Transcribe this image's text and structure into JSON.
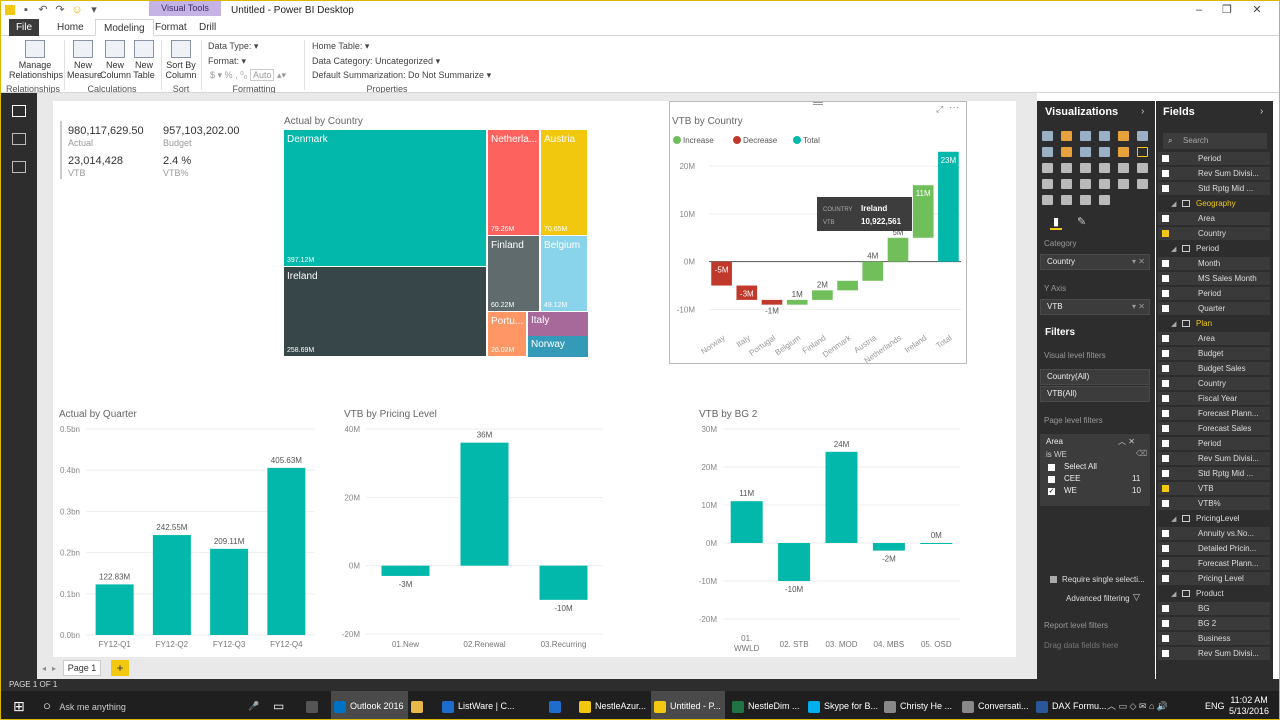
{
  "window": {
    "title": "Untitled - Power BI Desktop",
    "visual_tools": "Visual Tools"
  },
  "ribbon": {
    "tabs": [
      "File",
      "Home",
      "Modeling",
      "Format",
      "Drill"
    ],
    "active_tab": "Modeling",
    "buttons": {
      "manage_relationships": "Manage Relationships",
      "new_measure": "New Measure",
      "new_column": "New Column",
      "new_table": "New Table",
      "sort_by_column": "Sort By Column"
    },
    "groups": {
      "relationships": "Relationships",
      "calculations": "Calculations",
      "sort": "Sort",
      "formatting": "Formatting",
      "properties": "Properties"
    },
    "formatting": {
      "data_type": "Data Type:",
      "format": "Format:",
      "currency": "$",
      "percent": "%",
      "comma": ",",
      "auto": "Auto"
    },
    "properties": {
      "home_table": "Home Table:",
      "data_category": "Data Category: Uncategorized",
      "default_summarization": "Default Summarization: Do Not Summarize"
    }
  },
  "cards": {
    "actual_value": "980,117,629.50",
    "actual_label": "Actual",
    "budget_value": "957,103,202.00",
    "budget_label": "Budget",
    "vtb_value": "23,014,428",
    "vtb_label": "VTB",
    "vtbpct_value": "2.4 %",
    "vtbpct_label": "VTB%"
  },
  "treemap": {
    "title": "Actual by Country",
    "items": [
      {
        "name": "Denmark",
        "value": "397.12M",
        "color": "#01b8aa"
      },
      {
        "name": "Ireland",
        "value": "258.69M",
        "color": "#374649"
      },
      {
        "name": "Netherla...",
        "value": "79.26M",
        "color": "#fd625e"
      },
      {
        "name": "Austria",
        "value": "70.65M",
        "color": "#f2c80f"
      },
      {
        "name": "Finland",
        "value": "60.22M",
        "color": "#5f6b6d"
      },
      {
        "name": "Belgium",
        "value": "49.12M",
        "color": "#8ad4eb"
      },
      {
        "name": "Portu...",
        "value": "26.02M",
        "color": "#fe9666"
      },
      {
        "name": "Italy",
        "value": "",
        "color": "#a66999"
      },
      {
        "name": "Norway",
        "value": "",
        "color": "#3599b8"
      }
    ]
  },
  "chart_data": [
    {
      "type": "bar",
      "subtype": "waterfall",
      "title": "VTB by Country",
      "legend": [
        "Increase",
        "Decrease",
        "Total"
      ],
      "legend_colors": {
        "Increase": "#70bf5a",
        "Decrease": "#c0392b",
        "Total": "#01b8aa"
      },
      "categories": [
        "Norway",
        "Italy",
        "Portugal",
        "Belgium",
        "Finland",
        "Denmark",
        "Austria",
        "Netherlands",
        "Ireland",
        "Total"
      ],
      "values": [
        -5,
        -3,
        -1,
        1,
        2,
        2,
        4,
        5,
        11,
        23
      ],
      "labels": [
        "-5M",
        "-3M",
        "-1M",
        "1M",
        "2M",
        "",
        "4M",
        "5M",
        "11M",
        "23M"
      ],
      "ylim": [
        -12,
        24
      ],
      "yticks": [
        "-10M",
        "0M",
        "10M",
        "20M"
      ],
      "ytick_values": [
        -10,
        0,
        10,
        20
      ],
      "tooltip": {
        "country_label": "COUNTRY",
        "country": "Ireland",
        "vtb_label": "VTB",
        "vtb": "10,922,561"
      }
    },
    {
      "type": "bar",
      "title": "Actual by Quarter",
      "categories": [
        "FY12-Q1",
        "FY12-Q2",
        "FY12-Q3",
        "FY12-Q4"
      ],
      "values": [
        122.83,
        242.55,
        209.11,
        405.63
      ],
      "labels": [
        "122.83M",
        "242.55M",
        "209.11M",
        "405.63M"
      ],
      "ylim": [
        0,
        500
      ],
      "yticks": [
        "0.0bn",
        "0.1bn",
        "0.2bn",
        "0.3bn",
        "0.4bn",
        "0.5bn"
      ],
      "ytick_values": [
        0,
        100,
        200,
        300,
        400,
        500
      ]
    },
    {
      "type": "bar",
      "title": "VTB by Pricing Level",
      "categories": [
        "01.New",
        "02.Renewal",
        "03.Recurring"
      ],
      "values": [
        -3,
        36,
        -10
      ],
      "labels": [
        "-3M",
        "36M",
        "-10M"
      ],
      "ylim": [
        -20,
        40
      ],
      "yticks": [
        "-20M",
        "0M",
        "20M",
        "40M"
      ],
      "ytick_values": [
        -20,
        0,
        20,
        40
      ]
    },
    {
      "type": "bar",
      "title": "VTB by BG 2",
      "categories": [
        "01. WWLD",
        "02. STB",
        "03. MOD",
        "04. MBS",
        "05. OSD"
      ],
      "category_lines": [
        [
          "01.",
          "WWLD"
        ],
        [
          "02. STB"
        ],
        [
          "03. MOD"
        ],
        [
          "04. MBS"
        ],
        [
          "05. OSD"
        ]
      ],
      "values": [
        11,
        -10,
        24,
        -2,
        0
      ],
      "labels": [
        "11M",
        "-10M",
        "24M",
        "-2M",
        "0M"
      ],
      "ylim": [
        -20,
        30
      ],
      "yticks": [
        "-20M",
        "-10M",
        "0M",
        "10M",
        "20M",
        "30M"
      ],
      "ytick_values": [
        -20,
        -10,
        0,
        10,
        20,
        30
      ]
    }
  ],
  "pages": {
    "tab": "Page 1",
    "add": "+",
    "status": "PAGE 1 OF 1"
  },
  "viz_pane": {
    "title": "Visualizations",
    "category_label": "Category",
    "category_value": "Country",
    "yaxis_label": "Y Axis",
    "yaxis_value": "VTB",
    "filters_title": "Filters",
    "visual_level": "Visual level filters",
    "filter1": "Country(All)",
    "filter2": "VTB(All)",
    "page_level": "Page level filters",
    "area_filter": "Area",
    "area_is": "is WE",
    "select_all": "Select All",
    "cee": "CEE",
    "cee_count": "11",
    "we": "WE",
    "we_count": "10",
    "require_single": "Require single selecti...",
    "advanced": "Advanced filtering",
    "report_level": "Report level filters",
    "drag_here": "Drag data fields here"
  },
  "fields_pane": {
    "title": "Fields",
    "search_placeholder": "Search",
    "items": [
      {
        "kind": "field",
        "label": "Period",
        "checked": false
      },
      {
        "kind": "field",
        "label": "Rev Sum Divisi...",
        "checked": false
      },
      {
        "kind": "field",
        "label": "Std Rptg Mid ...",
        "checked": false
      },
      {
        "kind": "table",
        "label": "Geography",
        "highlight": true
      },
      {
        "kind": "field",
        "label": "Area",
        "checked": false
      },
      {
        "kind": "field",
        "label": "Country",
        "checked": true
      },
      {
        "kind": "table",
        "label": "Period",
        "highlight": false
      },
      {
        "kind": "field",
        "label": "Month",
        "checked": false
      },
      {
        "kind": "field",
        "label": "MS Sales Month",
        "checked": false
      },
      {
        "kind": "field",
        "label": "Period",
        "checked": false
      },
      {
        "kind": "field",
        "label": "Quarter",
        "checked": false
      },
      {
        "kind": "table",
        "label": "Plan",
        "highlight": true
      },
      {
        "kind": "field",
        "label": "Area",
        "checked": false
      },
      {
        "kind": "field",
        "label": "Budget",
        "checked": false
      },
      {
        "kind": "field",
        "label": "Budget Sales",
        "checked": false
      },
      {
        "kind": "field",
        "label": "Country",
        "checked": false
      },
      {
        "kind": "field",
        "label": "Fiscal Year",
        "checked": false
      },
      {
        "kind": "field",
        "label": "Forecast Plann...",
        "checked": false
      },
      {
        "kind": "field",
        "label": "Forecast Sales",
        "checked": false
      },
      {
        "kind": "field",
        "label": "Period",
        "checked": false
      },
      {
        "kind": "field",
        "label": "Rev Sum Divisi...",
        "checked": false
      },
      {
        "kind": "field",
        "label": "Std Rptg Mid ...",
        "checked": false
      },
      {
        "kind": "field",
        "label": "VTB",
        "checked": true
      },
      {
        "kind": "field",
        "label": "VTB%",
        "checked": false
      },
      {
        "kind": "table",
        "label": "PricingLevel",
        "highlight": false
      },
      {
        "kind": "field",
        "label": "Annuity vs.No...",
        "checked": false
      },
      {
        "kind": "field",
        "label": "Detailed Pricin...",
        "checked": false
      },
      {
        "kind": "field",
        "label": "Forecast Plann...",
        "checked": false
      },
      {
        "kind": "field",
        "label": "Pricing Level",
        "checked": false
      },
      {
        "kind": "table",
        "label": "Product",
        "highlight": false
      },
      {
        "kind": "field",
        "label": "BG",
        "checked": false
      },
      {
        "kind": "field",
        "label": "BG 2",
        "checked": false
      },
      {
        "kind": "field",
        "label": "Business",
        "checked": false
      },
      {
        "kind": "field",
        "label": "Rev Sum Divisi...",
        "checked": false
      }
    ]
  },
  "taskbar": {
    "search": "Ask me anything",
    "items": [
      "Outlook 2016",
      "ListWare | C...",
      "NestleAzur...",
      "Untitled - P...",
      "NestleDim ...",
      "Skype for B...",
      "Christy He ...",
      "Conversati...",
      "DAX Formu..."
    ],
    "lang": "ENG",
    "time": "11:02 AM",
    "date": "5/13/2016"
  },
  "colors": {
    "teal": "#01b8aa",
    "green": "#70bf5a",
    "red": "#c0392b",
    "accent": "#f2c811"
  }
}
